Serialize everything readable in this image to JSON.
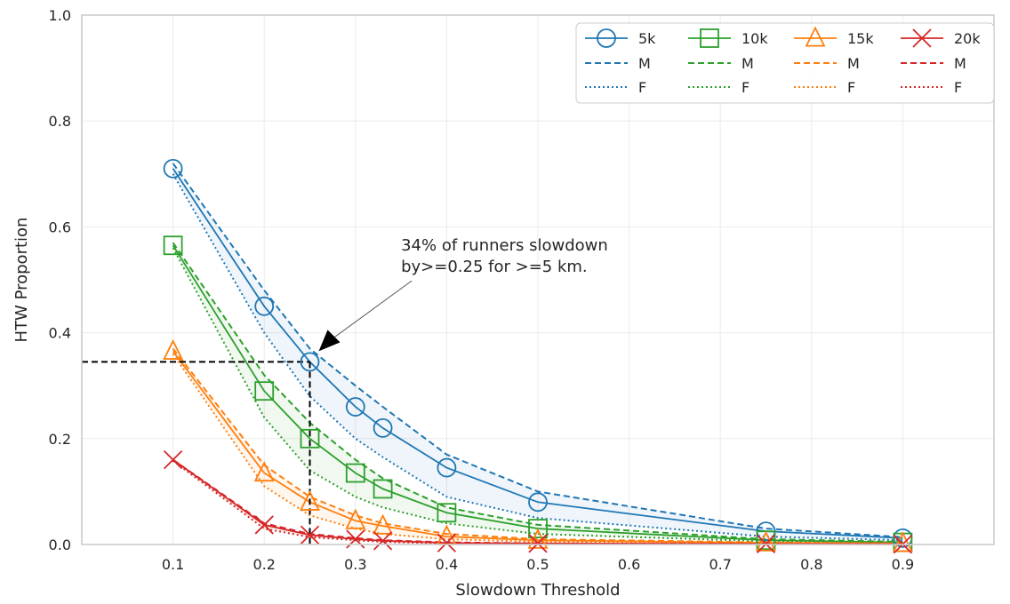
{
  "chart_data": {
    "type": "line",
    "xlabel": "Slowdown Threshold",
    "ylabel": "HTW Proportion",
    "xlim": [
      0.0,
      1.0
    ],
    "ylim": [
      0.0,
      1.0
    ],
    "xticks": [
      "0.1",
      "0.2",
      "0.3",
      "0.4",
      "0.5",
      "0.6",
      "0.7",
      "0.8",
      "0.9"
    ],
    "yticks": [
      "0.0",
      "0.2",
      "0.4",
      "0.6",
      "0.8",
      "1.0"
    ],
    "grid": true,
    "legend_position": "top-right",
    "x": [
      0.1,
      0.2,
      0.25,
      0.3,
      0.33,
      0.4,
      0.5,
      0.75,
      0.9
    ],
    "series": [
      {
        "name": "5k",
        "color": "#1f77b4",
        "marker": "circle",
        "values": [
          0.71,
          0.45,
          0.345,
          0.26,
          0.22,
          0.145,
          0.08,
          0.025,
          0.012
        ],
        "M": [
          0.72,
          0.48,
          0.37,
          0.3,
          0.26,
          0.17,
          0.1,
          0.03,
          0.014
        ],
        "F": [
          0.7,
          0.4,
          0.28,
          0.2,
          0.165,
          0.09,
          0.05,
          0.015,
          0.008
        ]
      },
      {
        "name": "10k",
        "color": "#2ca02c",
        "marker": "square",
        "values": [
          0.565,
          0.29,
          0.2,
          0.135,
          0.105,
          0.06,
          0.03,
          0.008,
          0.004
        ],
        "M": [
          0.57,
          0.32,
          0.23,
          0.16,
          0.125,
          0.07,
          0.037,
          0.01,
          0.005
        ],
        "F": [
          0.56,
          0.24,
          0.14,
          0.09,
          0.07,
          0.04,
          0.02,
          0.006,
          0.003
        ]
      },
      {
        "name": "15k",
        "color": "#ff7f0e",
        "marker": "triangle",
        "values": [
          0.365,
          0.135,
          0.08,
          0.045,
          0.035,
          0.015,
          0.008,
          0.003,
          0.002
        ],
        "M": [
          0.37,
          0.15,
          0.09,
          0.055,
          0.04,
          0.02,
          0.01,
          0.004,
          0.002
        ],
        "F": [
          0.36,
          0.11,
          0.055,
          0.03,
          0.02,
          0.01,
          0.005,
          0.002,
          0.001
        ]
      },
      {
        "name": "20k",
        "color": "#d62728",
        "marker": "x",
        "values": [
          0.16,
          0.037,
          0.018,
          0.01,
          0.007,
          0.003,
          0.002,
          0.001,
          0.0005
        ],
        "M": [
          0.16,
          0.04,
          0.02,
          0.012,
          0.008,
          0.004,
          0.002,
          0.001,
          0.0005
        ],
        "F": [
          0.158,
          0.03,
          0.014,
          0.008,
          0.005,
          0.002,
          0.001,
          0.0005,
          0.0003
        ]
      }
    ],
    "legend_sub_labels": {
      "male": "M",
      "female": "F"
    },
    "annotation": {
      "line1": "34% of runners slowdown",
      "line2": "by>=0.25 for >=5 km.",
      "point": [
        0.25,
        0.345
      ],
      "text_at": [
        0.35,
        0.535
      ]
    },
    "reference_point": [
      0.25,
      0.345
    ]
  }
}
